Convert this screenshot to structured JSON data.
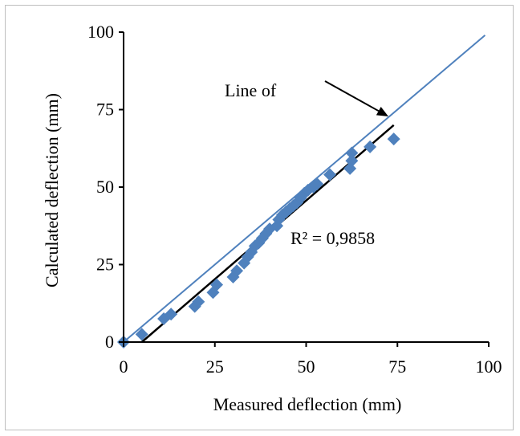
{
  "chart_data": {
    "type": "scatter",
    "title": "",
    "xlabel": "Measured deflection (mm)",
    "ylabel": "Calculated deflection (mm)",
    "xlim": [
      0,
      100
    ],
    "ylim": [
      0,
      100
    ],
    "x_ticks": [
      0,
      25,
      50,
      75,
      100
    ],
    "y_ticks": [
      0,
      25,
      50,
      75,
      100
    ],
    "grid": false,
    "series": [
      {
        "marker": "diamond",
        "color": "#4f81bd",
        "points": [
          [
            0,
            0
          ],
          [
            5,
            2.5
          ],
          [
            11,
            7.5
          ],
          [
            13,
            9
          ],
          [
            19.5,
            11.5
          ],
          [
            20.5,
            13
          ],
          [
            24.5,
            16
          ],
          [
            25.5,
            18.5
          ],
          [
            30,
            21
          ],
          [
            31,
            23
          ],
          [
            33,
            25.5
          ],
          [
            34,
            27.5
          ],
          [
            35,
            29
          ],
          [
            36,
            31
          ],
          [
            37,
            32
          ],
          [
            38,
            33.5
          ],
          [
            39,
            35
          ],
          [
            40,
            36.5
          ],
          [
            42,
            37.5
          ],
          [
            42.5,
            39.5
          ],
          [
            43.5,
            41
          ],
          [
            44.5,
            42
          ],
          [
            45.5,
            43
          ],
          [
            46.5,
            44
          ],
          [
            47.5,
            45
          ],
          [
            48.5,
            46.5
          ],
          [
            49.5,
            48
          ],
          [
            50.5,
            49
          ],
          [
            52,
            50
          ],
          [
            53,
            51
          ],
          [
            56.5,
            54
          ],
          [
            62,
            56
          ],
          [
            62.5,
            58.5
          ],
          [
            62.5,
            61
          ],
          [
            67.5,
            63
          ],
          [
            74,
            65.5
          ]
        ]
      }
    ],
    "lines": [
      {
        "kind": "line-of-equality",
        "color": "#4f81bd",
        "from": [
          0,
          0
        ],
        "to": [
          99,
          99
        ]
      },
      {
        "kind": "trendline",
        "color": "#000000",
        "from": [
          5,
          0
        ],
        "to": [
          74,
          70
        ]
      }
    ],
    "annotations": {
      "equality_label": "Line of",
      "r_squared": "R² = 0,9858"
    }
  }
}
